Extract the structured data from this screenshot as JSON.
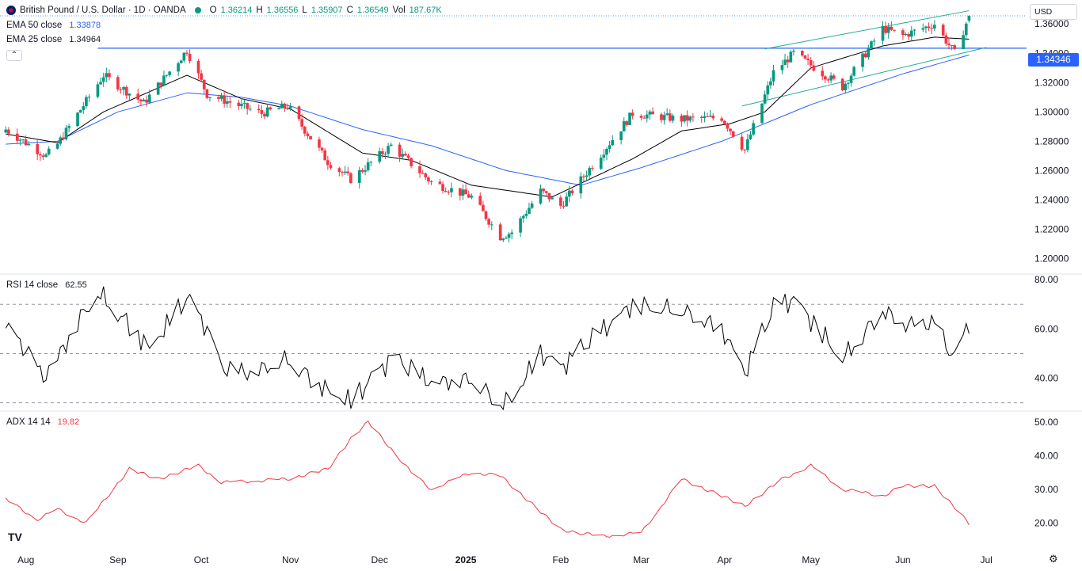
{
  "header": {
    "symbol": "British Pound / U.S. Dollar · 1D · OANDA",
    "o_label": "O",
    "o": "1.36214",
    "h_label": "H",
    "h": "1.36556",
    "l_label": "L",
    "l": "1.35907",
    "c_label": "C",
    "c": "1.36549",
    "vol_label": "Vol",
    "vol": "187.67K",
    "ema50_label": "EMA 50 close",
    "ema50": "1.33878",
    "ema25_label": "EMA 25 close",
    "ema25": "1.34964",
    "currency": "USD",
    "collapse_icon": "chevron-up-icon"
  },
  "price_line": {
    "value": 1.34346,
    "label": "1.34346",
    "color": "#2962ff"
  },
  "colors": {
    "up": "#089981",
    "down": "#f23645",
    "ema50": "#2962ff",
    "ema25": "#000000",
    "rsi": "#000000",
    "adx": "#f23645",
    "channel": "#22ab94"
  },
  "rsi_label": {
    "name": "RSI 14 close",
    "value": "62.55"
  },
  "adx_label": {
    "name": "ADX 14 14",
    "value": "19.82"
  },
  "chart_data": [
    {
      "type": "candlestick",
      "ylim": [
        1.19,
        1.372
      ],
      "yticks": [
        "1.36000",
        "1.34000",
        "1.32000",
        "1.30000",
        "1.28000",
        "1.26000",
        "1.24000",
        "1.22000",
        "1.20000"
      ],
      "yticks_values": [
        1.36,
        1.34,
        1.32,
        1.3,
        1.28,
        1.26,
        1.24,
        1.22,
        1.2
      ],
      "xticks": [
        "Aug",
        "Sep",
        "Oct",
        "Nov",
        "Dec",
        "2025",
        "Feb",
        "Mar",
        "Apr",
        "May",
        "Jun",
        "Jul"
      ],
      "xticks_dates": [
        "2024-08-01",
        "2024-09-02",
        "2024-10-01",
        "2024-11-01",
        "2024-12-02",
        "2025-01-01",
        "2025-02-03",
        "2025-03-03",
        "2025-04-01",
        "2025-05-01",
        "2025-06-02",
        "2025-07-01"
      ],
      "close_anchors": [
        [
          "2024-07-25",
          1.288
        ],
        [
          "2024-08-08",
          1.27
        ],
        [
          "2024-08-12",
          1.278
        ],
        [
          "2024-08-28",
          1.325
        ],
        [
          "2024-09-11",
          1.306
        ],
        [
          "2024-09-26",
          1.342
        ],
        [
          "2024-10-03",
          1.312
        ],
        [
          "2024-10-22",
          1.299
        ],
        [
          "2024-10-31",
          1.304
        ],
        [
          "2024-11-14",
          1.266
        ],
        [
          "2024-11-22",
          1.254
        ],
        [
          "2024-12-06",
          1.277
        ],
        [
          "2024-12-20",
          1.252
        ],
        [
          "2025-01-03",
          1.242
        ],
        [
          "2025-01-13",
          1.215
        ],
        [
          "2025-01-17",
          1.218
        ],
        [
          "2025-01-27",
          1.246
        ],
        [
          "2025-02-03",
          1.236
        ],
        [
          "2025-02-28",
          1.299
        ],
        [
          "2025-03-17",
          1.295
        ],
        [
          "2025-03-31",
          1.296
        ],
        [
          "2025-04-08",
          1.274
        ],
        [
          "2025-04-18",
          1.327
        ],
        [
          "2025-04-25",
          1.34
        ],
        [
          "2025-05-12",
          1.317
        ],
        [
          "2025-05-26",
          1.357
        ],
        [
          "2025-06-02",
          1.352
        ],
        [
          "2025-06-13",
          1.36
        ],
        [
          "2025-06-20",
          1.34
        ],
        [
          "2025-06-25",
          1.3655
        ]
      ],
      "ema25_anchors": [
        [
          "2024-07-25",
          1.285
        ],
        [
          "2024-08-12",
          1.279
        ],
        [
          "2024-08-28",
          1.3
        ],
        [
          "2024-09-26",
          1.325
        ],
        [
          "2024-10-15",
          1.309
        ],
        [
          "2024-11-01",
          1.302
        ],
        [
          "2024-11-26",
          1.272
        ],
        [
          "2024-12-13",
          1.267
        ],
        [
          "2025-01-03",
          1.25
        ],
        [
          "2025-01-31",
          1.242
        ],
        [
          "2025-02-28",
          1.268
        ],
        [
          "2025-03-17",
          1.287
        ],
        [
          "2025-04-03",
          1.292
        ],
        [
          "2025-04-15",
          1.3
        ],
        [
          "2025-05-01",
          1.33
        ],
        [
          "2025-05-26",
          1.345
        ],
        [
          "2025-06-13",
          1.351
        ],
        [
          "2025-06-25",
          1.3496
        ]
      ],
      "ema50_anchors": [
        [
          "2024-07-25",
          1.278
        ],
        [
          "2024-08-12",
          1.28
        ],
        [
          "2024-09-02",
          1.3
        ],
        [
          "2024-09-26",
          1.313
        ],
        [
          "2024-10-15",
          1.31
        ],
        [
          "2024-11-01",
          1.304
        ],
        [
          "2024-11-26",
          1.288
        ],
        [
          "2024-12-20",
          1.277
        ],
        [
          "2025-01-15",
          1.26
        ],
        [
          "2025-02-10",
          1.25
        ],
        [
          "2025-03-03",
          1.262
        ],
        [
          "2025-03-31",
          1.28
        ],
        [
          "2025-05-01",
          1.305
        ],
        [
          "2025-06-02",
          1.326
        ],
        [
          "2025-06-25",
          1.3388
        ]
      ],
      "channel_upper": [
        [
          "2025-04-15",
          1.343
        ],
        [
          "2025-06-25",
          1.369
        ]
      ],
      "channel_lower": [
        [
          "2025-04-07",
          1.304
        ],
        [
          "2025-07-01",
          1.344
        ]
      ],
      "horizontal_line": [
        [
          "2024-08-26",
          1.34346
        ],
        [
          "2025-07-01",
          1.34346
        ]
      ]
    },
    {
      "type": "line",
      "name": "RSI 14 close",
      "ylim": [
        27,
        82
      ],
      "yticks": [
        "80.00",
        "60.00",
        "40.00"
      ],
      "yticks_values": [
        80,
        60,
        40
      ],
      "bands": [
        70,
        50,
        30
      ],
      "anchors": [
        [
          "2024-07-25",
          60
        ],
        [
          "2024-08-02",
          50
        ],
        [
          "2024-08-07",
          40
        ],
        [
          "2024-08-12",
          48
        ],
        [
          "2024-08-20",
          65
        ],
        [
          "2024-08-26",
          75
        ],
        [
          "2024-09-06",
          62
        ],
        [
          "2024-09-13",
          52
        ],
        [
          "2024-09-26",
          72
        ],
        [
          "2024-10-03",
          60
        ],
        [
          "2024-10-08",
          44
        ],
        [
          "2024-10-18",
          42
        ],
        [
          "2024-10-31",
          48
        ],
        [
          "2024-11-14",
          35
        ],
        [
          "2024-11-22",
          30
        ],
        [
          "2024-12-06",
          48
        ],
        [
          "2024-12-20",
          38
        ],
        [
          "2025-01-03",
          40
        ],
        [
          "2025-01-13",
          30
        ],
        [
          "2025-01-17",
          32
        ],
        [
          "2025-01-27",
          50
        ],
        [
          "2025-02-03",
          44
        ],
        [
          "2025-02-28",
          70
        ],
        [
          "2025-03-17",
          68
        ],
        [
          "2025-03-31",
          60
        ],
        [
          "2025-04-08",
          42
        ],
        [
          "2025-04-18",
          68
        ],
        [
          "2025-04-25",
          72
        ],
        [
          "2025-05-12",
          48
        ],
        [
          "2025-05-26",
          68
        ],
        [
          "2025-06-02",
          62
        ],
        [
          "2025-06-13",
          62
        ],
        [
          "2025-06-20",
          47
        ],
        [
          "2025-06-25",
          62.55
        ]
      ]
    },
    {
      "type": "line",
      "name": "ADX 14 14",
      "ylim": [
        13,
        53
      ],
      "yticks": [
        "50.00",
        "40.00",
        "30.00",
        "20.00"
      ],
      "yticks_values": [
        50,
        40,
        30,
        20
      ],
      "anchors": [
        [
          "2024-07-25",
          27
        ],
        [
          "2024-08-05",
          21
        ],
        [
          "2024-08-12",
          24
        ],
        [
          "2024-08-22",
          20
        ],
        [
          "2024-09-06",
          36
        ],
        [
          "2024-09-16",
          33
        ],
        [
          "2024-09-30",
          37
        ],
        [
          "2024-10-08",
          32
        ],
        [
          "2024-10-31",
          33
        ],
        [
          "2024-11-14",
          36
        ],
        [
          "2024-11-22",
          45
        ],
        [
          "2024-11-28",
          50
        ],
        [
          "2024-12-13",
          35
        ],
        [
          "2024-12-20",
          30
        ],
        [
          "2025-01-03",
          35
        ],
        [
          "2025-01-13",
          34
        ],
        [
          "2025-02-03",
          18
        ],
        [
          "2025-02-17",
          16
        ],
        [
          "2025-03-03",
          17
        ],
        [
          "2025-03-17",
          33
        ],
        [
          "2025-03-31",
          28
        ],
        [
          "2025-04-08",
          25
        ],
        [
          "2025-04-21",
          33
        ],
        [
          "2025-05-01",
          37
        ],
        [
          "2025-05-12",
          30
        ],
        [
          "2025-05-26",
          28
        ],
        [
          "2025-06-02",
          31
        ],
        [
          "2025-06-13",
          31
        ],
        [
          "2025-06-25",
          19.82
        ]
      ]
    }
  ]
}
